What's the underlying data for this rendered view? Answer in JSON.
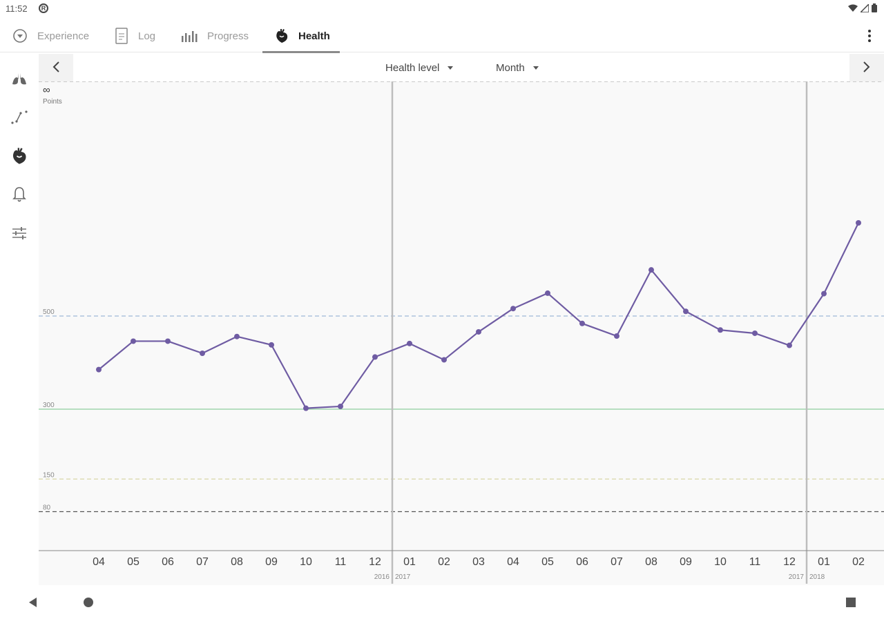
{
  "status_bar": {
    "time": "11:52"
  },
  "tabs": [
    {
      "label": "Experience",
      "icon": "compass-icon",
      "active": false
    },
    {
      "label": "Log",
      "icon": "document-icon",
      "active": false
    },
    {
      "label": "Progress",
      "icon": "bar-chart-icon",
      "active": false
    },
    {
      "label": "Health",
      "icon": "heart-anatomy-icon",
      "active": true
    }
  ],
  "side_nav": [
    {
      "icon": "lungs-icon"
    },
    {
      "icon": "trend-line-icon"
    },
    {
      "icon": "heart-anatomy-icon"
    },
    {
      "icon": "bell-icon"
    },
    {
      "icon": "sliders-icon"
    }
  ],
  "chart_header": {
    "metric_label": "Health level",
    "period_label": "Month"
  },
  "colors": {
    "line": "#6f5ca3",
    "green_line": "#8fcf9f",
    "blue_dash": "#9fb7d8",
    "yellow_dash": "#d9d7a8",
    "dark_dash": "#555555",
    "year_divider": "#bdbdbd"
  },
  "chart_data": {
    "type": "line",
    "ylabel_symbol": "∞",
    "ylabel_unit": "Points",
    "reference_lines": [
      {
        "label": "500",
        "value": 500,
        "style": "dashed",
        "color_key": "blue_dash"
      },
      {
        "label": "300",
        "value": 300,
        "style": "solid",
        "color_key": "green_line"
      },
      {
        "label": "150",
        "value": 150,
        "style": "dashed",
        "color_key": "yellow_dash"
      },
      {
        "label": "80",
        "value": 80,
        "style": "dashed",
        "color_key": "dark_dash"
      }
    ],
    "x_categories": [
      "04",
      "05",
      "06",
      "07",
      "08",
      "09",
      "10",
      "11",
      "12",
      "01",
      "02",
      "03",
      "04",
      "05",
      "06",
      "07",
      "08",
      "09",
      "10",
      "11",
      "12",
      "01",
      "02"
    ],
    "year_dividers": [
      {
        "after_index": 8,
        "left_year": "2016",
        "right_year": "2017"
      },
      {
        "after_index": 20,
        "left_year": "2017",
        "right_year": "2018"
      }
    ],
    "values": [
      385,
      446,
      446,
      420,
      456,
      438,
      302,
      306,
      412,
      441,
      406,
      466,
      516,
      549,
      484,
      457,
      599,
      510,
      470,
      463,
      437,
      548,
      700
    ]
  }
}
